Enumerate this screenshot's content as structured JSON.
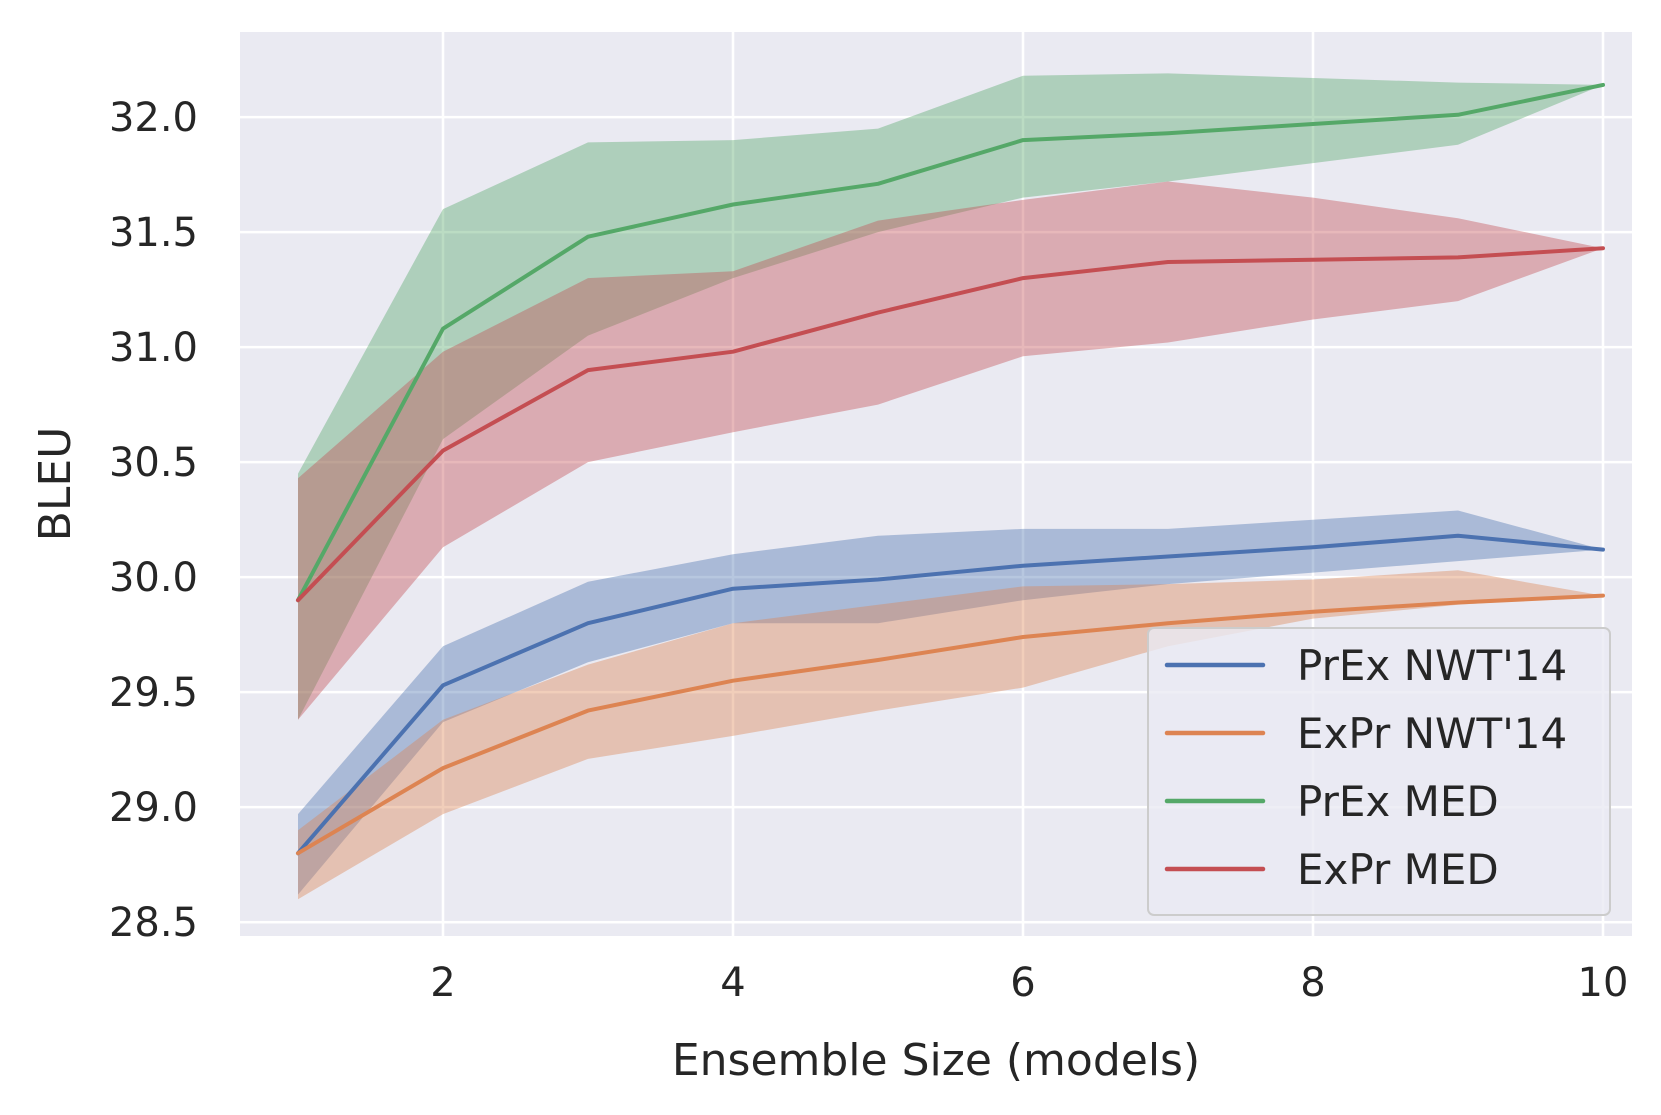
{
  "chart_data": {
    "type": "line",
    "title": "",
    "xlabel": "Ensemble Size (models)",
    "ylabel": "BLEU",
    "xlim": [
      0.6,
      10.2
    ],
    "ylim": [
      28.44,
      32.37
    ],
    "xticks": [
      2,
      4,
      6,
      8,
      10
    ],
    "xtick_labels": [
      "2",
      "4",
      "6",
      "8",
      "10"
    ],
    "yticks": [
      28.5,
      29.0,
      29.5,
      30.0,
      30.5,
      31.0,
      31.5,
      32.0
    ],
    "ytick_labels": [
      "28.5",
      "29.0",
      "29.5",
      "30.0",
      "30.5",
      "31.0",
      "31.5",
      "32.0"
    ],
    "grid": true,
    "legend_position": "bottom-right",
    "x": [
      1,
      2,
      3,
      4,
      5,
      6,
      7,
      8,
      9,
      10
    ],
    "series": [
      {
        "name": "PrEx NWT'14",
        "color": "#4c72b0",
        "values": [
          28.8,
          29.53,
          29.8,
          29.95,
          29.99,
          30.05,
          30.09,
          30.13,
          30.18,
          30.12
        ],
        "lower": [
          28.62,
          29.37,
          29.63,
          29.8,
          29.8,
          29.9,
          29.97,
          30.02,
          30.07,
          30.12
        ],
        "upper": [
          28.97,
          29.7,
          29.98,
          30.1,
          30.18,
          30.21,
          30.21,
          30.25,
          30.29,
          30.12
        ]
      },
      {
        "name": "ExPr NWT'14",
        "color": "#dd8452",
        "values": [
          28.8,
          29.17,
          29.42,
          29.55,
          29.64,
          29.74,
          29.8,
          29.85,
          29.89,
          29.92
        ],
        "lower": [
          28.6,
          28.97,
          29.21,
          29.31,
          29.42,
          29.52,
          29.7,
          29.82,
          29.88,
          29.92
        ],
        "upper": [
          28.9,
          29.38,
          29.62,
          29.8,
          29.88,
          29.96,
          29.97,
          29.99,
          30.03,
          29.92
        ]
      },
      {
        "name": "PrEx MED",
        "color": "#55a868",
        "values": [
          29.9,
          31.08,
          31.48,
          31.62,
          31.71,
          31.9,
          31.93,
          31.97,
          32.01,
          32.14
        ],
        "lower": [
          29.38,
          30.6,
          31.05,
          31.3,
          31.5,
          31.65,
          31.72,
          31.8,
          31.88,
          32.14
        ],
        "upper": [
          30.45,
          31.6,
          31.89,
          31.9,
          31.95,
          32.18,
          32.19,
          32.17,
          32.15,
          32.14
        ]
      },
      {
        "name": "ExPr MED",
        "color": "#c44e52",
        "values": [
          29.9,
          30.55,
          30.9,
          30.98,
          31.15,
          31.3,
          31.37,
          31.38,
          31.39,
          31.43
        ],
        "lower": [
          29.38,
          30.13,
          30.5,
          30.63,
          30.75,
          30.96,
          31.02,
          31.12,
          31.2,
          31.43
        ],
        "upper": [
          30.43,
          30.98,
          31.3,
          31.33,
          31.55,
          31.64,
          31.72,
          31.65,
          31.56,
          31.43
        ]
      }
    ]
  }
}
